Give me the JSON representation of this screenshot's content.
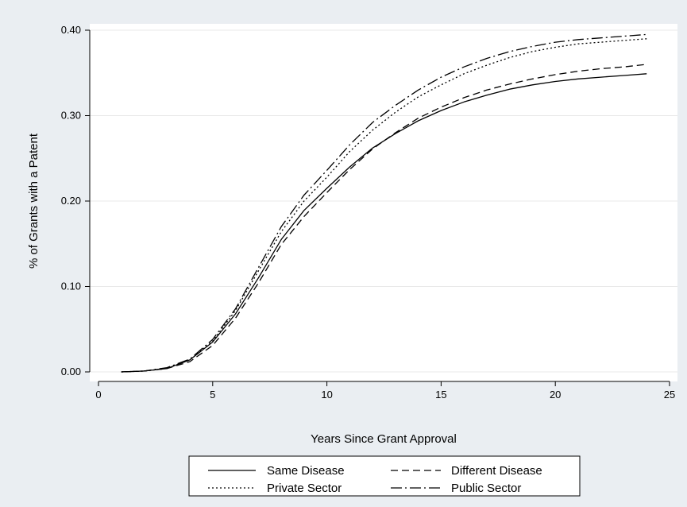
{
  "chart_data": {
    "type": "line",
    "title": "",
    "xlabel": "Years Since Grant Approval",
    "ylabel": "% of Grants with a Patent",
    "xlim": [
      0,
      25
    ],
    "ylim": [
      0,
      0.4
    ],
    "x_ticks": [
      {
        "value": 0,
        "label": "0"
      },
      {
        "value": 5,
        "label": "5"
      },
      {
        "value": 10,
        "label": "10"
      },
      {
        "value": 15,
        "label": "15"
      },
      {
        "value": 20,
        "label": "20"
      },
      {
        "value": 25,
        "label": "25"
      }
    ],
    "y_ticks": [
      {
        "value": 0.0,
        "label": "0.00"
      },
      {
        "value": 0.1,
        "label": "0.10"
      },
      {
        "value": 0.2,
        "label": "0.20"
      },
      {
        "value": 0.3,
        "label": "0.30"
      },
      {
        "value": 0.4,
        "label": "0.40"
      }
    ],
    "grid": "horizontal",
    "legend_placement": "bottom",
    "x": [
      1,
      2,
      3,
      4,
      5,
      6,
      7,
      8,
      9,
      10,
      11,
      12,
      13,
      14,
      15,
      16,
      17,
      18,
      19,
      20,
      21,
      22,
      23,
      24
    ],
    "series": [
      {
        "name": "Same Disease",
        "style": "solid",
        "values": [
          0.0,
          0.001,
          0.004,
          0.014,
          0.035,
          0.068,
          0.11,
          0.155,
          0.189,
          0.215,
          0.24,
          0.262,
          0.279,
          0.294,
          0.306,
          0.316,
          0.324,
          0.331,
          0.336,
          0.34,
          0.343,
          0.345,
          0.347,
          0.349
        ]
      },
      {
        "name": "Different Disease",
        "style": "dash",
        "values": [
          0.0,
          0.001,
          0.004,
          0.012,
          0.031,
          0.063,
          0.104,
          0.149,
          0.182,
          0.21,
          0.237,
          0.261,
          0.28,
          0.297,
          0.31,
          0.321,
          0.33,
          0.337,
          0.343,
          0.348,
          0.352,
          0.355,
          0.357,
          0.36
        ]
      },
      {
        "name": "Private Sector",
        "style": "dot",
        "values": [
          0.0,
          0.001,
          0.004,
          0.014,
          0.036,
          0.072,
          0.118,
          0.164,
          0.2,
          0.228,
          0.258,
          0.283,
          0.304,
          0.322,
          0.336,
          0.349,
          0.359,
          0.368,
          0.375,
          0.38,
          0.384,
          0.386,
          0.388,
          0.39
        ]
      },
      {
        "name": "Public Sector",
        "style": "longdash-dot",
        "values": [
          0.0,
          0.001,
          0.005,
          0.015,
          0.038,
          0.074,
          0.122,
          0.17,
          0.207,
          0.236,
          0.266,
          0.292,
          0.312,
          0.33,
          0.345,
          0.357,
          0.367,
          0.375,
          0.381,
          0.386,
          0.389,
          0.391,
          0.393,
          0.395
        ]
      }
    ],
    "colors": {
      "background": "#eaeef2",
      "plot_background": "#ffffff",
      "grid": "#e8e8e8",
      "line": "#000000"
    }
  }
}
